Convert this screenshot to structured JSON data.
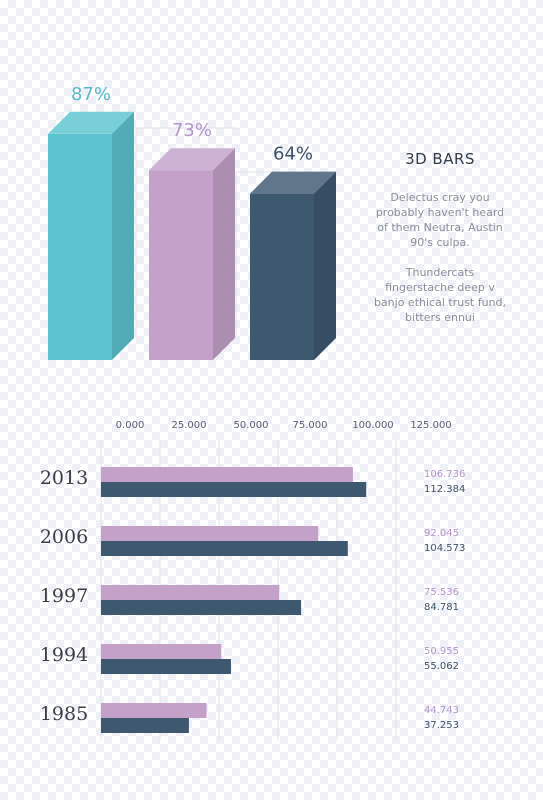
{
  "colors": {
    "teal": "#5cc4d0",
    "lilac": "#c3a1c9",
    "slate": "#3e5870",
    "pct_teal": "#5ab8c8",
    "pct_lilac": "#b594c8",
    "pct_slate": "#3d5266",
    "grid": "#dfe3ea",
    "year_text": "#3a3d45",
    "tick_text": "#5a6070"
  },
  "info": {
    "title": "3D BARS",
    "paragraph1": "Delectus cray you probably haven't heard of them Neutra, Austin 90's culpa.",
    "paragraph2": "Thundercats fingerstache deep v banjo ethical trust fund, bitters ennui"
  },
  "chart_data": [
    {
      "type": "bar",
      "categories": [
        "",
        "",
        ""
      ],
      "values": [
        87,
        73,
        64
      ],
      "labels": [
        "87%",
        "73%",
        "64%"
      ],
      "series_colors": [
        "#5cc4d0",
        "#c3a1c9",
        "#3e5870"
      ],
      "title": "",
      "ylim": [
        0,
        100
      ]
    },
    {
      "type": "bar",
      "orientation": "horizontal",
      "categories": [
        "2013",
        "2006",
        "1997",
        "1994",
        "1985"
      ],
      "series": [
        {
          "values": [
            106.736,
            92.045,
            75.536,
            50.955,
            44.743
          ],
          "labels": [
            "106.736",
            "92.045",
            "75.536",
            "50.955",
            "44.743"
          ]
        },
        {
          "values": [
            112.384,
            104.573,
            84.781,
            55.062,
            37.253
          ],
          "labels": [
            "112.384",
            "104.573",
            "84.781",
            "55.062",
            "37.253"
          ]
        }
      ],
      "xticks": [
        "0.000",
        "25.000",
        "50.000",
        "75.000",
        "100.000",
        "125.000"
      ],
      "xlim": [
        0,
        125
      ],
      "title": "",
      "xlabel": "",
      "ylabel": ""
    }
  ]
}
